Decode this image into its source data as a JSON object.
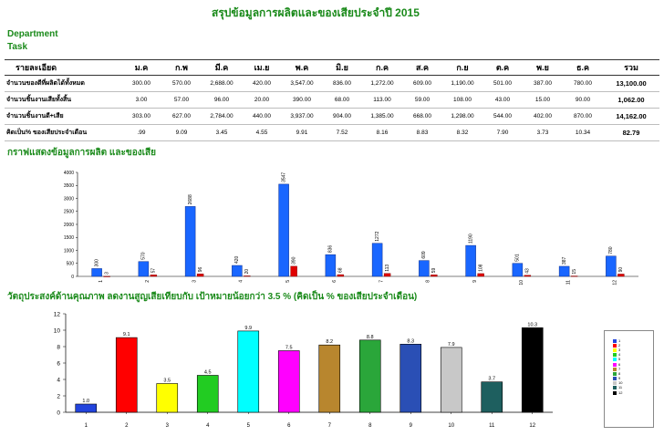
{
  "report": {
    "title": "สรุปข้อมูลการผลิตและของเสียประจำปี 2015",
    "department_label": "Department",
    "task_label": "Task"
  },
  "table": {
    "header_label": "รายละเอียด",
    "months": [
      "ม.ค",
      "ก.พ",
      "มี.ค",
      "เม.ย",
      "พ.ค",
      "มิ.ย",
      "ก.ค",
      "ส.ค",
      "ก.ย",
      "ต.ค",
      "พ.ย",
      "ธ.ค"
    ],
    "total_label": "รวม",
    "rows": [
      {
        "label": "จำนวนของดีที่ผลิตได้ทั้งหมด",
        "values": [
          "300.00",
          "570.00",
          "2,688.00",
          "420.00",
          "3,547.00",
          "836.00",
          "1,272.00",
          "609.00",
          "1,190.00",
          "501.00",
          "387.00",
          "780.00"
        ],
        "total": "13,100.00"
      },
      {
        "label": "จำนวนชิ้นงานเสียทั้งสิ้น",
        "values": [
          "3.00",
          "57.00",
          "96.00",
          "20.00",
          "390.00",
          "68.00",
          "113.00",
          "59.00",
          "108.00",
          "43.00",
          "15.00",
          "90.00"
        ],
        "total": "1,062.00"
      },
      {
        "label": "จำนวนชิ้นงานดี+เสีย",
        "values": [
          "303.00",
          "627.00",
          "2,784.00",
          "440.00",
          "3,937.00",
          "904.00",
          "1,385.00",
          "668.00",
          "1,298.00",
          "544.00",
          "402.00",
          "870.00"
        ],
        "total": "14,162.00"
      },
      {
        "label": "คิดเป็น% ของเสียประจำเดือน",
        "values": [
          ".99",
          "9.09",
          "3.45",
          "4.55",
          "9.91",
          "7.52",
          "8.16",
          "8.83",
          "8.32",
          "7.90",
          "3.73",
          "10.34"
        ],
        "total": "82.79"
      }
    ]
  },
  "colors": {
    "title": "#1a8a1a"
  },
  "chart_data": [
    {
      "type": "bar",
      "title": "กราฟแสดงข้อมูลการผลิต และของเสีย",
      "categories": [
        "1",
        "2",
        "3",
        "4",
        "5",
        "6",
        "7",
        "8",
        "9",
        "10",
        "11",
        "12"
      ],
      "series": [
        {
          "color": "#1966ff",
          "values": [
            300,
            570,
            2688,
            420,
            3547,
            836,
            1272,
            609,
            1190,
            501,
            387,
            780
          ]
        },
        {
          "color": "#e00000",
          "values": [
            3,
            57,
            96,
            20,
            390,
            68,
            113,
            59,
            108,
            43,
            15,
            90
          ]
        }
      ],
      "ylim": [
        0,
        4000
      ],
      "yticks": [
        0,
        500,
        1000,
        1500,
        2000,
        2500,
        3000,
        3500,
        4000
      ],
      "data_labels": true,
      "grid": false
    },
    {
      "type": "bar",
      "title": "วัตถุประสงค์ด้านคุณภาพ ลดงานสูญเสียเทียบกับ เป้าหมายน้อยกว่า 3.5 % (คิดเป็น % ของเสียประจำเดือน)",
      "categories": [
        "1",
        "2",
        "3",
        "4",
        "5",
        "6",
        "7",
        "8",
        "9",
        "10",
        "11",
        "12"
      ],
      "series": [
        {
          "values": [
            1.0,
            9.1,
            3.5,
            4.5,
            9.9,
            7.5,
            8.2,
            8.8,
            8.3,
            7.9,
            3.7,
            10.3
          ]
        }
      ],
      "bar_colors": [
        "#2244dd",
        "#ff0000",
        "#ffff00",
        "#22cc22",
        "#00ffff",
        "#ff00ff",
        "#b8862e",
        "#2aa63a",
        "#2a4fb5",
        "#c8c8c8",
        "#1e5f5f",
        "#000000"
      ],
      "ylim": [
        0,
        12
      ],
      "yticks": [
        0,
        2,
        4,
        6,
        8,
        10,
        12
      ],
      "data_labels": true,
      "grid": false,
      "legend": {
        "position": "right",
        "entries": [
          "1",
          "2",
          "3",
          "4",
          "5",
          "6",
          "7",
          "8",
          "9",
          "10",
          "11",
          "12"
        ]
      }
    }
  ]
}
